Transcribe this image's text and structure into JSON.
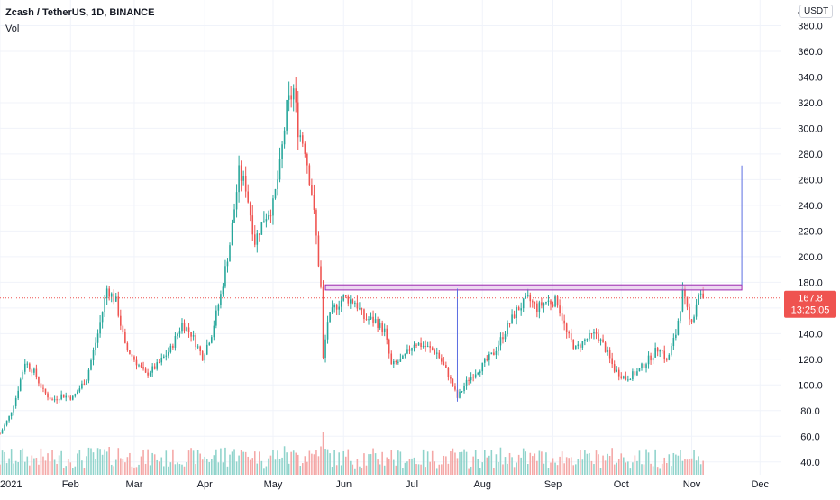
{
  "header": {
    "title": "Zcash / TetherUS, 1D, BINANCE",
    "volume_label": "Vol",
    "currency_button": "USDT",
    "axis_edge_label": "4"
  },
  "colors": {
    "up": "#26a69a",
    "down": "#ef5350",
    "vol_up": "#8fd3cb",
    "vol_down": "#f4a7a6",
    "grid": "#f0f3fa",
    "axis_text": "#131722",
    "price_line": "#ef5350",
    "zone_fill": "#e1bee7",
    "zone_stroke": "#9c27b0",
    "measure_line": "#5b6ee1",
    "price_badge": "#ef5350"
  },
  "chart_data": {
    "type": "candlestick",
    "symbol": "Zcash / TetherUS",
    "interval": "1D",
    "exchange": "BINANCE",
    "y_ticks": [
      40,
      60,
      80,
      100,
      120,
      140,
      160,
      180,
      200,
      220,
      240,
      260,
      280,
      300,
      320,
      340,
      360,
      380
    ],
    "y_tick_labels": [
      "40.0",
      "60.0",
      "80.0",
      "100.0",
      "120.0",
      "140.0",
      "160.0",
      "180.0",
      "200.0",
      "220.0",
      "240.0",
      "260.0",
      "280.0",
      "300.0",
      "320.0",
      "340.0",
      "360.0",
      "380.0"
    ],
    "ylim": [
      30,
      400
    ],
    "x_range": [
      "2021-01-01",
      "2021-12-10"
    ],
    "x_ticks": [
      {
        "date": "2021-01-01",
        "label": "2021"
      },
      {
        "date": "2021-02-01",
        "label": "Feb"
      },
      {
        "date": "2021-03-01",
        "label": "Mar"
      },
      {
        "date": "2021-04-01",
        "label": "Apr"
      },
      {
        "date": "2021-05-01",
        "label": "May"
      },
      {
        "date": "2021-06-01",
        "label": "Jun"
      },
      {
        "date": "2021-07-01",
        "label": "Jul"
      },
      {
        "date": "2021-08-01",
        "label": "Aug"
      },
      {
        "date": "2021-09-01",
        "label": "Sep"
      },
      {
        "date": "2021-10-01",
        "label": "Oct"
      },
      {
        "date": "2021-11-01",
        "label": "Nov"
      },
      {
        "date": "2021-12-01",
        "label": "Dec"
      }
    ],
    "last_price": 167.8,
    "last_price_label": "167.8",
    "countdown_label": "13:25:05",
    "price_path": [
      [
        "2021-01-01",
        62
      ],
      [
        "2021-01-05",
        75
      ],
      [
        "2021-01-08",
        90
      ],
      [
        "2021-01-12",
        118
      ],
      [
        "2021-01-16",
        110
      ],
      [
        "2021-01-20",
        95
      ],
      [
        "2021-01-24",
        88
      ],
      [
        "2021-01-28",
        92
      ],
      [
        "2021-02-02",
        90
      ],
      [
        "2021-02-08",
        105
      ],
      [
        "2021-02-13",
        140
      ],
      [
        "2021-02-17",
        175
      ],
      [
        "2021-02-21",
        165
      ],
      [
        "2021-02-25",
        130
      ],
      [
        "2021-03-01",
        120
      ],
      [
        "2021-03-06",
        108
      ],
      [
        "2021-03-11",
        115
      ],
      [
        "2021-03-17",
        128
      ],
      [
        "2021-03-22",
        148
      ],
      [
        "2021-03-26",
        140
      ],
      [
        "2021-03-31",
        122
      ],
      [
        "2021-04-04",
        140
      ],
      [
        "2021-04-08",
        170
      ],
      [
        "2021-04-12",
        210
      ],
      [
        "2021-04-16",
        265
      ],
      [
        "2021-04-19",
        255
      ],
      [
        "2021-04-23",
        212
      ],
      [
        "2021-04-27",
        230
      ],
      [
        "2021-05-01",
        240
      ],
      [
        "2021-05-04",
        270
      ],
      [
        "2021-05-07",
        315
      ],
      [
        "2021-05-10",
        330
      ],
      [
        "2021-05-12",
        300
      ],
      [
        "2021-05-15",
        285
      ],
      [
        "2021-05-18",
        250
      ],
      [
        "2021-05-20",
        215
      ],
      [
        "2021-05-22",
        175
      ],
      [
        "2021-05-23",
        120
      ],
      [
        "2021-05-25",
        150
      ],
      [
        "2021-05-28",
        160
      ],
      [
        "2021-06-01",
        168
      ],
      [
        "2021-06-06",
        165
      ],
      [
        "2021-06-10",
        152
      ],
      [
        "2021-06-15",
        150
      ],
      [
        "2021-06-19",
        142
      ],
      [
        "2021-06-22",
        115
      ],
      [
        "2021-06-27",
        120
      ],
      [
        "2021-07-02",
        133
      ],
      [
        "2021-07-07",
        130
      ],
      [
        "2021-07-12",
        125
      ],
      [
        "2021-07-17",
        108
      ],
      [
        "2021-07-21",
        90
      ],
      [
        "2021-07-26",
        105
      ],
      [
        "2021-08-01",
        115
      ],
      [
        "2021-08-06",
        125
      ],
      [
        "2021-08-11",
        142
      ],
      [
        "2021-08-16",
        158
      ],
      [
        "2021-08-21",
        167
      ],
      [
        "2021-08-25",
        160
      ],
      [
        "2021-08-29",
        165
      ],
      [
        "2021-09-03",
        165
      ],
      [
        "2021-09-07",
        140
      ],
      [
        "2021-09-11",
        128
      ],
      [
        "2021-09-15",
        135
      ],
      [
        "2021-09-20",
        140
      ],
      [
        "2021-09-24",
        128
      ],
      [
        "2021-09-28",
        112
      ],
      [
        "2021-10-03",
        105
      ],
      [
        "2021-10-08",
        110
      ],
      [
        "2021-10-13",
        120
      ],
      [
        "2021-10-18",
        130
      ],
      [
        "2021-10-21",
        118
      ],
      [
        "2021-10-25",
        140
      ],
      [
        "2021-10-28",
        172
      ],
      [
        "2021-10-31",
        150
      ],
      [
        "2021-11-02",
        155
      ],
      [
        "2021-11-04",
        172
      ],
      [
        "2021-11-06",
        167.8
      ]
    ],
    "annotations": {
      "resistance_zone": {
        "from": "2021-05-24",
        "to": "2021-11-23",
        "low": 174,
        "high": 178
      },
      "measure_lines": [
        {
          "date": "2021-07-21",
          "from": 87,
          "to": 175
        },
        {
          "date": "2021-11-23",
          "from": 178,
          "to": 271
        }
      ]
    }
  }
}
